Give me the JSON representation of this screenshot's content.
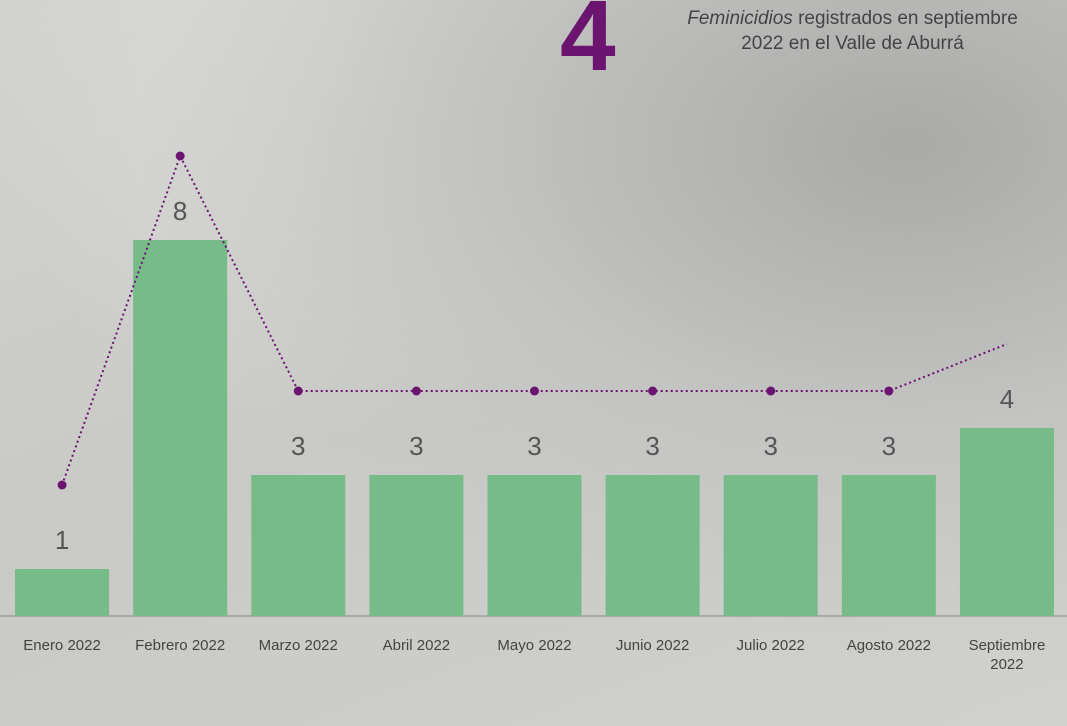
{
  "headline_number": "4",
  "title_emphasis": "Feminicidios",
  "title_rest": "registrados en septiembre",
  "title_line2": "2022 en el Valle de Aburrá",
  "chart_data": {
    "type": "bar",
    "categories": [
      "Enero 2022",
      "Febrero 2022",
      "Marzo 2022",
      "Abril 2022",
      "Mayo 2022",
      "Junio 2022",
      "Julio 2022",
      "Agosto 2022",
      "Septiembre 2022"
    ],
    "values": [
      1,
      8,
      3,
      3,
      3,
      3,
      3,
      3,
      4
    ],
    "color": "#77bb88",
    "line_color": "#6b1470",
    "ylim": [
      0,
      10
    ]
  }
}
